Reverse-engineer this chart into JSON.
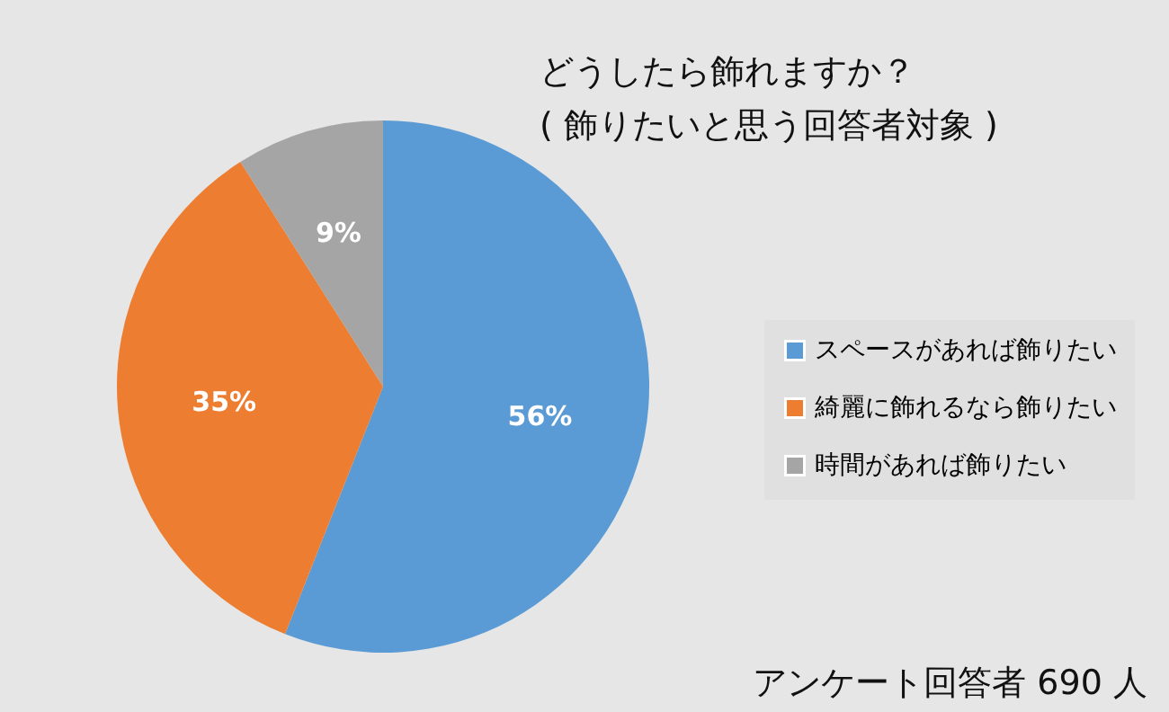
{
  "chart_data": {
    "type": "pie",
    "title": "どうしたら飾れますか？",
    "subtitle": "( 飾りたいと思う回答者対象 )",
    "categories": [
      "スペースがあれば飾りたい",
      "綺麗に飾れるなら飾りたい",
      "時間があれば飾りたい"
    ],
    "values": [
      56,
      35,
      9
    ],
    "colors": [
      "#5b9bd5",
      "#ed7d31",
      "#a5a5a5"
    ],
    "value_labels": [
      "56%",
      "35%",
      "9%"
    ],
    "legend": "right",
    "annotations": [
      "アンケート回答者 690 人"
    ]
  }
}
